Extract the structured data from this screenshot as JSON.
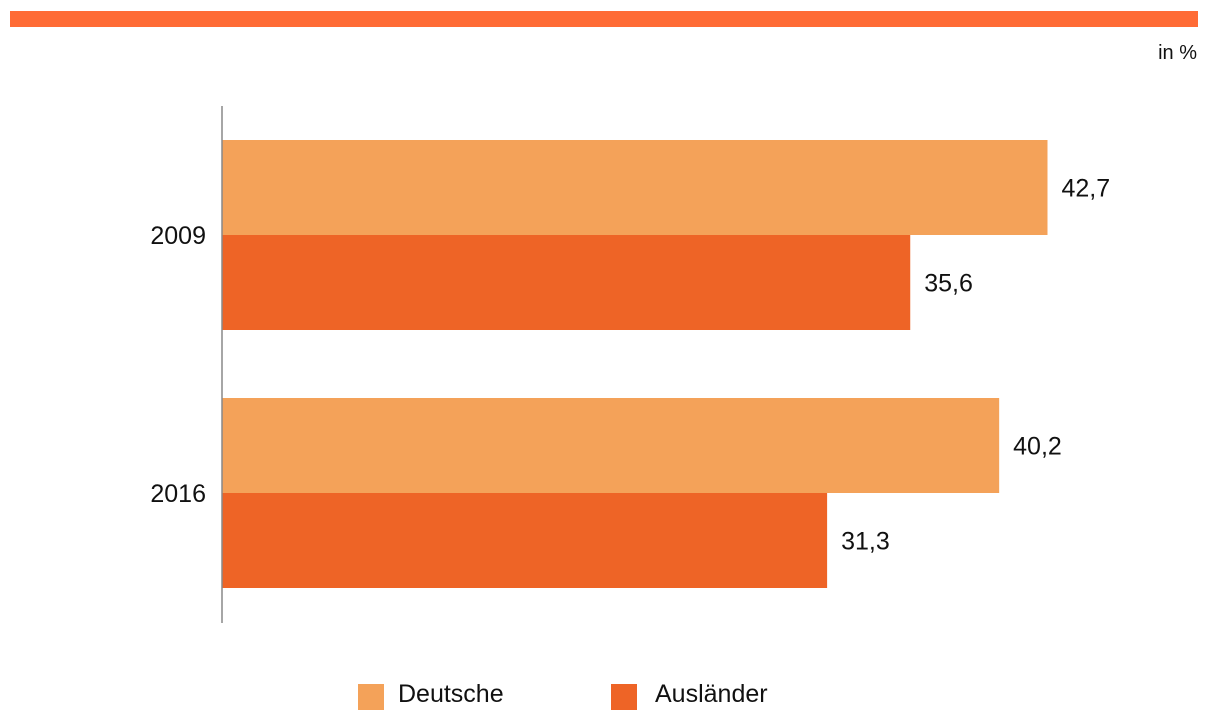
{
  "header": {
    "unit_label": "in %",
    "accent_color": "#FF6B35"
  },
  "chart_data": {
    "type": "bar",
    "orientation": "horizontal",
    "categories": [
      "2009",
      "2016"
    ],
    "series": [
      {
        "name": "Deutsche",
        "values": [
          42.7,
          40.2
        ],
        "labels": [
          "42,7",
          "40,2"
        ],
        "color": "#F4A259"
      },
      {
        "name": "Ausländer",
        "values": [
          35.6,
          31.3
        ],
        "labels": [
          "35,6",
          "31,3"
        ],
        "color": "#EE6426"
      }
    ],
    "xlim": [
      0,
      50
    ],
    "grid": false,
    "legend": "bottom-center",
    "axis_color": "#888888"
  }
}
